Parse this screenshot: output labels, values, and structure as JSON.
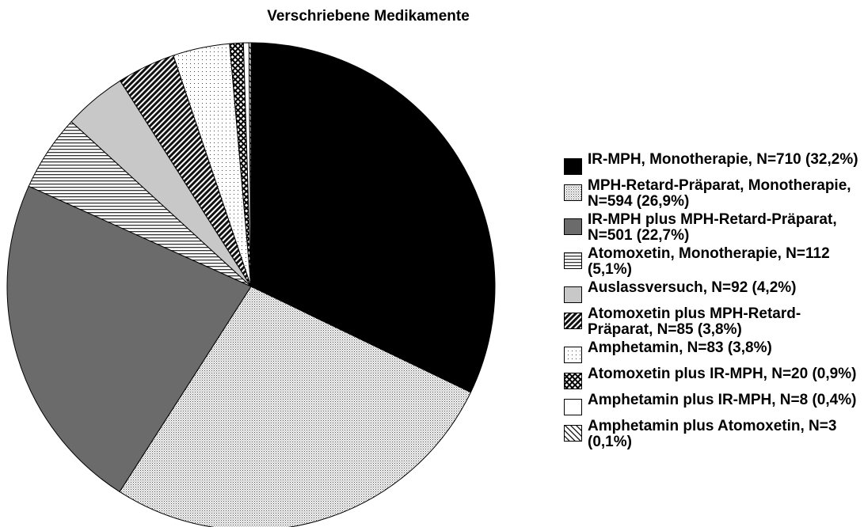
{
  "chart_data": {
    "type": "pie",
    "title": "Verschriebene Medikamente",
    "categories": [
      "IR-MPH, Monotherapie, N=710 (32,2%)",
      "MPH-Retard-Präparat, Monotherapie, N=594 (26,9%)",
      "IR-MPH plus MPH-Retard-Präparat, N=501 (22,7%)",
      "Atomoxetin, Monotherapie, N=112 (5,1%)",
      "Auslassversuch, N=92 (4,2%)",
      "Atomoxetin plus MPH-Retard-Präparat, N=85 (3,8%)",
      "Amphetamin, N=83 (3,8%)",
      "Atomoxetin plus IR-MPH, N=20 (0,9%)",
      "Amphetamin plus IR-MPH, N=8 (0,4%)",
      "Amphetamin plus Atomoxetin, N=3 (0,1%)"
    ],
    "values": [
      710,
      594,
      501,
      112,
      92,
      85,
      83,
      20,
      8,
      3
    ],
    "patterns": [
      "black",
      "fine-dots",
      "dark-gray",
      "horizontal",
      "light-gray",
      "diagonal-dark",
      "sparse-dots",
      "crosshatch",
      "white",
      "diagonal-light"
    ]
  }
}
